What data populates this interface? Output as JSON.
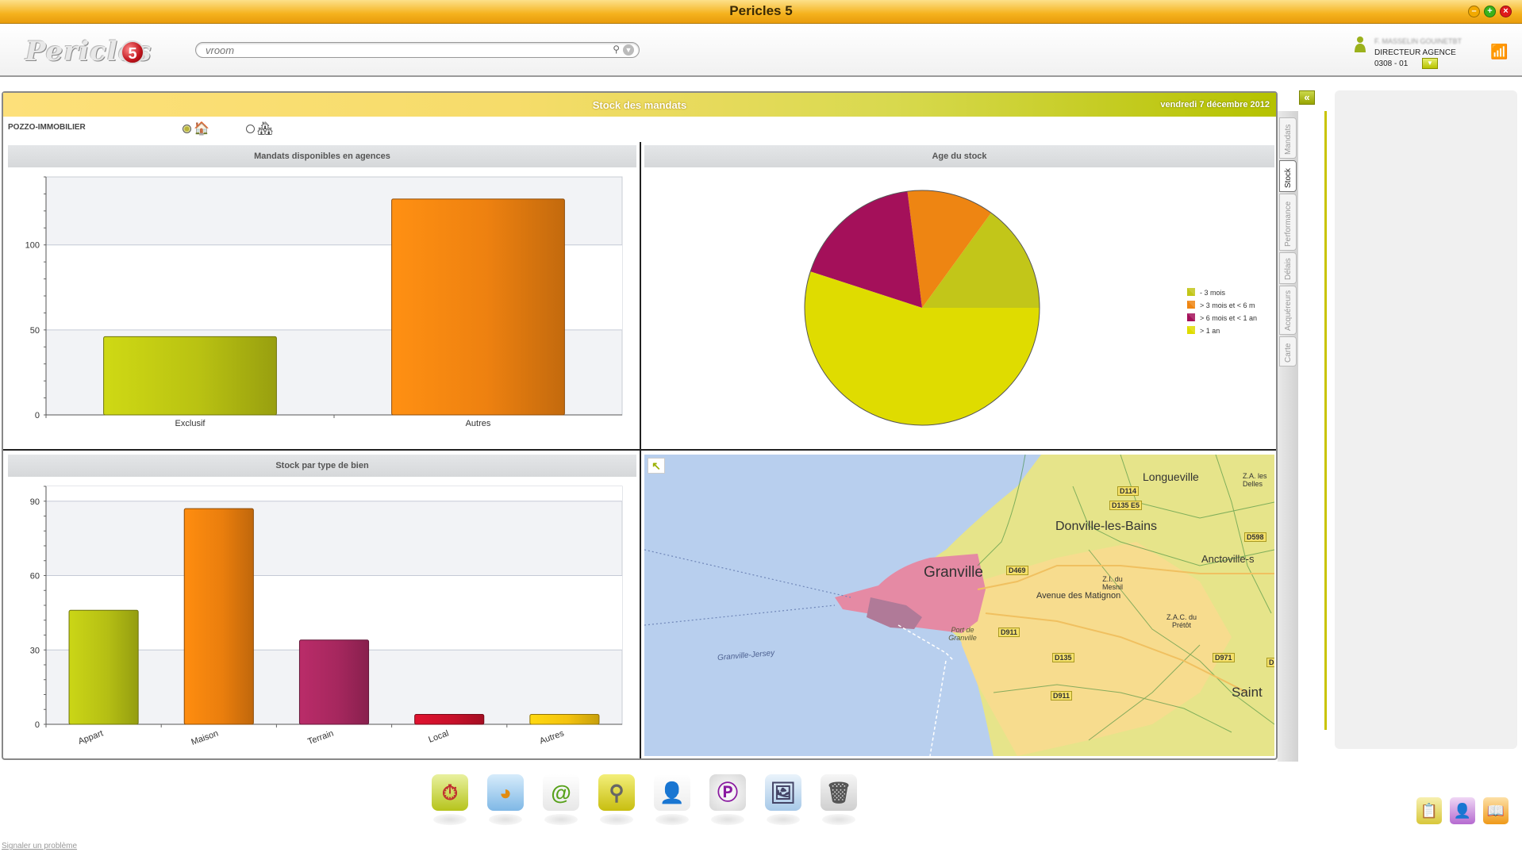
{
  "window": {
    "title": "Pericles 5"
  },
  "header": {
    "logo_text": "Pericles",
    "logo_badge": "5",
    "search": {
      "placeholder": "vroom"
    },
    "user": {
      "name": "F. MASSELIN GOUINETBT",
      "role": "DIRECTEUR AGENCE",
      "agency_code": "0308",
      "agency_sep": "-",
      "agency_num": "01"
    }
  },
  "panel": {
    "title": "Stock des mandats",
    "date": "vendredi 7 décembre 2012",
    "agency": "POZZO-IMMOBILIER"
  },
  "chart_data": [
    {
      "type": "bar",
      "title": "Mandats disponibles en agences",
      "categories": [
        "Exclusif",
        "Autres"
      ],
      "values": [
        46,
        127
      ],
      "ylim": [
        0,
        140
      ],
      "yticks": [
        0,
        50,
        100
      ],
      "colors": [
        "#b9c212",
        "#ee8110"
      ],
      "grid": true
    },
    {
      "type": "pie",
      "title": "Age du stock",
      "labels": [
        "- 3 mois",
        "> 3 mois et < 6 m",
        "> 6 mois et < 1 an",
        "> 1 an"
      ],
      "values": [
        15,
        12,
        18,
        55
      ],
      "colors": [
        "#c2c619",
        "#ee8512",
        "#a4105a",
        "#dfdc00"
      ],
      "legend": "right"
    },
    {
      "type": "bar",
      "title": "Stock par type de bien",
      "categories": [
        "Appart",
        "Maison",
        "Terrain",
        "Local",
        "Autres"
      ],
      "values": [
        46,
        87,
        34,
        4,
        4
      ],
      "ylim": [
        0,
        96
      ],
      "yticks": [
        0,
        30,
        60,
        90
      ],
      "colors": [
        "#b5bf14",
        "#ea7e0d",
        "#a6275e",
        "#c8102a",
        "#f3c20e"
      ],
      "grid": true
    }
  ],
  "map": {
    "labels": {
      "granville": "Granville",
      "donville": "Donville-les-Bains",
      "longueville": "Longueville",
      "za_delles": "Z.A. les Delles",
      "anctoville": "Anctoville-s",
      "zi_mesnil": "Z.I. du Mesnil",
      "zac_pretot": "Z.A.C. du Prétôt",
      "avenue": "Avenue des Matignon",
      "port": "Port de Granville",
      "ferry": "Granville-Jersey",
      "saint": "Saint"
    },
    "roads": [
      "D114",
      "D135 E5",
      "D598",
      "D469",
      "D911",
      "D135",
      "D971",
      "D911",
      "D"
    ]
  },
  "sidetabs": [
    "Mandats",
    "Stock",
    "Performance",
    "Délais",
    "Acquéreurs",
    "Carte"
  ],
  "footer": {
    "report_link": "Signaler un problème"
  }
}
